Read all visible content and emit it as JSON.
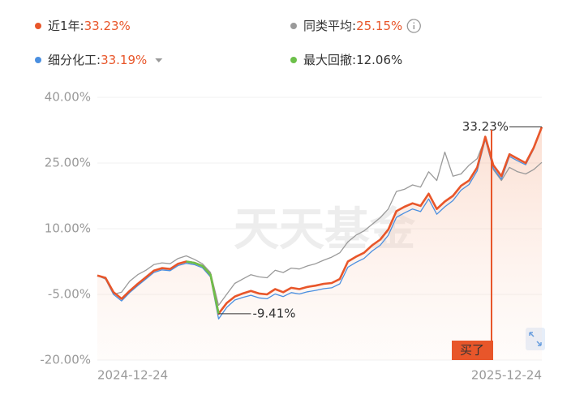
{
  "chart_data": {
    "type": "line",
    "categories": [
      "2024-12-24",
      null,
      null,
      null,
      null,
      null,
      null,
      null,
      null,
      null,
      null,
      null,
      null,
      null,
      null,
      null,
      null,
      null,
      null,
      null,
      null,
      null,
      null,
      null,
      null,
      null,
      null,
      null,
      null,
      null,
      null,
      null,
      null,
      null,
      null,
      null,
      null,
      null,
      null,
      null,
      null,
      null,
      null,
      null,
      null,
      null,
      null,
      null,
      null,
      null,
      null,
      null,
      null,
      null,
      null,
      "2025-12-24"
    ],
    "series": [
      {
        "name": "近1年:",
        "summary": "33.23%",
        "color": "#e8562a",
        "values": [
          -0.7,
          -1.2,
          -4.5,
          -6.0,
          -4.2,
          -2.6,
          -1.1,
          0.4,
          1.0,
          0.8,
          2.0,
          2.5,
          2.2,
          1.5,
          -0.5,
          -9.41,
          -7.0,
          -5.5,
          -4.8,
          -4.2,
          -4.8,
          -5.0,
          -3.8,
          -4.5,
          -3.5,
          -3.8,
          -3.3,
          -3.0,
          -2.6,
          -2.4,
          -1.5,
          2.5,
          3.6,
          4.5,
          6.2,
          7.5,
          9.8,
          14.0,
          15.0,
          15.8,
          15.2,
          18.0,
          14.5,
          16.2,
          17.5,
          19.8,
          21.0,
          24.0,
          31.0,
          24.5,
          22.0,
          27.0,
          26.0,
          25.0,
          28.5,
          33.23
        ]
      },
      {
        "name": "同类平均:",
        "summary": "25.15%",
        "color": "#9a9a9a",
        "values": [
          -0.7,
          -1.5,
          -5.0,
          -4.5,
          -2.0,
          -0.5,
          0.5,
          1.8,
          2.2,
          2.0,
          3.2,
          3.8,
          3.0,
          2.0,
          0.0,
          -7.5,
          -5.0,
          -2.5,
          -1.5,
          -0.5,
          -1.0,
          -1.2,
          0.5,
          0.0,
          1.0,
          0.8,
          1.5,
          2.0,
          2.8,
          3.5,
          4.5,
          7.0,
          8.5,
          9.5,
          11.0,
          12.5,
          14.5,
          18.5,
          19.0,
          20.0,
          19.5,
          23.0,
          21.0,
          27.5,
          22.0,
          22.5,
          24.5,
          26.0,
          30.7,
          23.5,
          21.0,
          24.0,
          23.0,
          22.5,
          23.5,
          25.15
        ]
      },
      {
        "name": "细分化工:",
        "summary": "33.19%",
        "color": "#4a8fe0",
        "values": [
          -0.7,
          -1.4,
          -5.0,
          -6.5,
          -4.6,
          -3.0,
          -1.5,
          0.0,
          0.6,
          0.4,
          1.6,
          2.1,
          1.8,
          1.1,
          -1.0,
          -10.6,
          -8.0,
          -6.3,
          -5.7,
          -5.2,
          -5.8,
          -6.0,
          -4.9,
          -5.5,
          -4.6,
          -4.9,
          -4.4,
          -4.1,
          -3.7,
          -3.5,
          -2.6,
          1.2,
          2.3,
          3.2,
          4.9,
          6.2,
          8.5,
          12.6,
          13.6,
          14.5,
          13.9,
          16.8,
          13.3,
          15.0,
          16.4,
          18.8,
          20.1,
          23.2,
          30.4,
          23.8,
          21.3,
          26.5,
          25.5,
          24.6,
          28.2,
          33.19
        ]
      }
    ],
    "drawdown": {
      "name": "最大回撤:",
      "summary": "12.06%",
      "color": "#6cc04a"
    },
    "annotations": {
      "max": "33.23%",
      "min": "-9.41%",
      "buy": "买了",
      "watermark": "天天基金"
    },
    "ylim": [
      -20,
      40
    ],
    "yticks": [
      {
        "value": 40,
        "label": "40.00%"
      },
      {
        "value": 25,
        "label": "25.00%"
      },
      {
        "value": 10,
        "label": "10.00%"
      },
      {
        "value": -5,
        "label": "-5.00%"
      },
      {
        "value": -20,
        "label": "-20.00%"
      }
    ],
    "grid": true
  }
}
